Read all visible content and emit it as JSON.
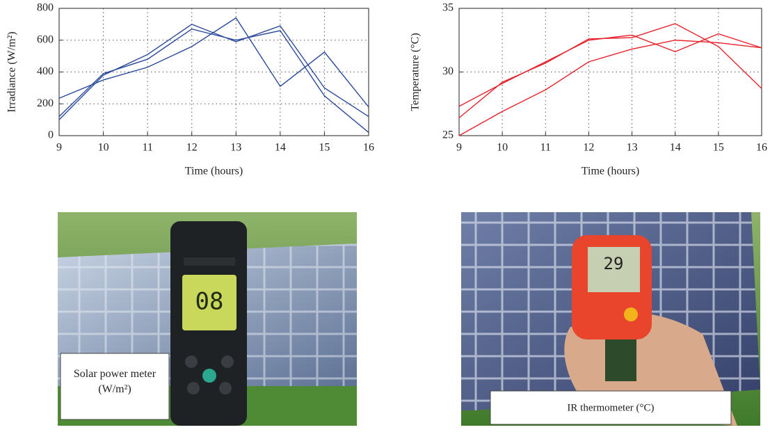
{
  "chart_data": [
    {
      "type": "line",
      "xlabel": "Time (hours)",
      "ylabel": "Irradiance (W/m²)",
      "x": [
        9,
        10,
        11,
        12,
        13,
        14,
        15,
        16
      ],
      "xlim": [
        9,
        16
      ],
      "xticks": [
        9,
        10,
        11,
        12,
        13,
        14,
        15,
        16
      ],
      "ylim": [
        0,
        800
      ],
      "yticks": [
        0,
        200,
        400,
        600,
        800
      ],
      "grid": true,
      "series": [
        {
          "color": "#2b4a9b",
          "values": [
            100,
            380,
            510,
            700,
            590,
            690,
            300,
            120
          ]
        },
        {
          "color": "#2b4a9b",
          "values": [
            120,
            390,
            480,
            670,
            600,
            660,
            250,
            20
          ]
        },
        {
          "color": "#2b4a9b",
          "values": [
            235,
            350,
            430,
            560,
            740,
            310,
            525,
            180
          ]
        }
      ]
    },
    {
      "type": "line",
      "xlabel": "Time (hours)",
      "ylabel": "Temperature (°C)",
      "x": [
        9,
        10,
        11,
        12,
        13,
        14,
        15,
        16
      ],
      "xlim": [
        9,
        16
      ],
      "xticks": [
        9,
        10,
        11,
        12,
        13,
        14,
        15,
        16
      ],
      "ylim": [
        25,
        35
      ],
      "yticks": [
        25,
        30,
        35
      ],
      "grid": true,
      "series": [
        {
          "color": "#e8202a",
          "values": [
            27.3,
            29.1,
            30.8,
            32.5,
            32.9,
            31.6,
            33.0,
            31.9
          ]
        },
        {
          "color": "#e8202a",
          "values": [
            26.4,
            29.2,
            30.7,
            32.6,
            32.7,
            33.8,
            32.0,
            28.7
          ]
        },
        {
          "color": "#e8202a",
          "values": [
            25.0,
            26.9,
            28.6,
            30.8,
            31.8,
            32.5,
            32.3,
            31.9
          ]
        }
      ]
    }
  ],
  "photos": [
    {
      "caption": "Solar power meter (W/m²)"
    },
    {
      "caption": "IR thermometer (°C)"
    }
  ]
}
